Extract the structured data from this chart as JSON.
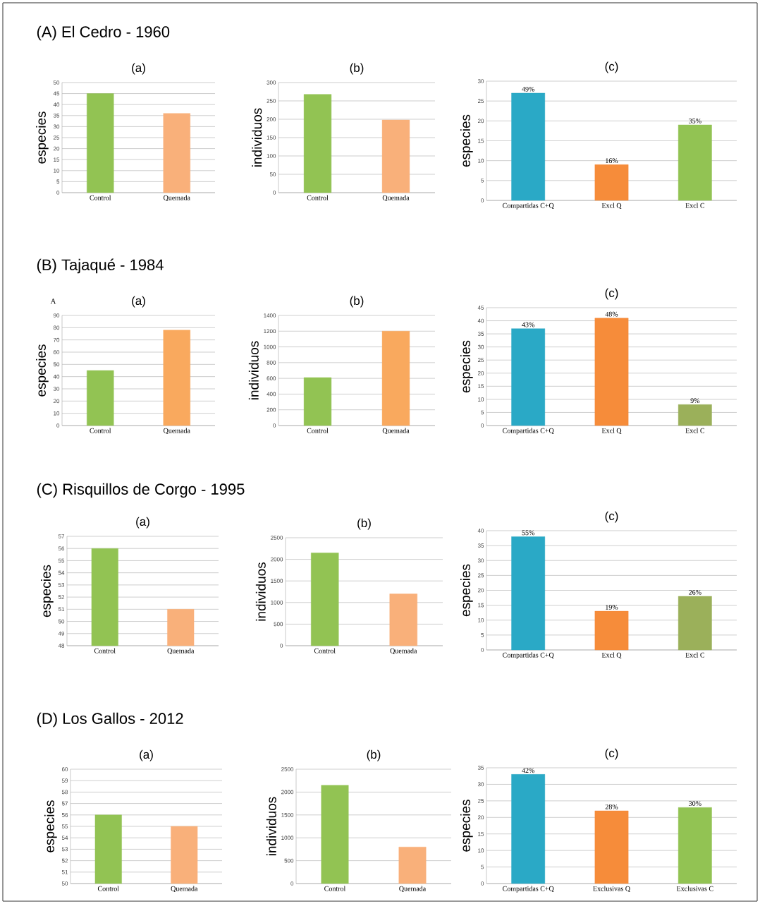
{
  "chart_data": [
    {
      "type": "bar",
      "title": "(a)",
      "annotations": [
        "(A) El Cedro - 1960"
      ],
      "ylabel": "especies",
      "categories": [
        "Control",
        "Quemada"
      ],
      "values": [
        45,
        36
      ],
      "colors": [
        "#92c353",
        "#f9b07a"
      ],
      "ylim": [
        0,
        50
      ],
      "yticks": [
        0,
        5,
        10,
        15,
        20,
        25,
        30,
        35,
        40,
        45,
        50
      ],
      "grid": "y"
    },
    {
      "type": "bar",
      "title": "(b)",
      "ylabel": "individuos",
      "categories": [
        "Control",
        "Quemada"
      ],
      "values": [
        268,
        198
      ],
      "colors": [
        "#92c353",
        "#f9b07a"
      ],
      "ylim": [
        0,
        300
      ],
      "yticks": [
        0,
        50,
        100,
        150,
        200,
        250,
        300
      ],
      "grid": "y"
    },
    {
      "type": "bar",
      "title": "(c)",
      "ylabel": "especies",
      "categories": [
        "Compartidas C+Q",
        "Excl Q",
        "Excl C"
      ],
      "values": [
        27,
        9,
        19
      ],
      "colors": [
        "#2aa9c6",
        "#f68c3a",
        "#92c353"
      ],
      "annotations": [
        {
          "text": "49%",
          "x": "Compartidas C+Q",
          "y": 27
        },
        {
          "text": "16%",
          "x": "Excl Q",
          "y": 9
        },
        {
          "text": "35%",
          "x": "Excl C",
          "y": 19
        }
      ],
      "ylim": [
        0,
        30
      ],
      "yticks": [
        0,
        5,
        10,
        15,
        20,
        25,
        30
      ],
      "grid": "y"
    },
    {
      "type": "bar",
      "title": "(a)",
      "annotations": [
        "(B) Tajaqué - 1984",
        "A"
      ],
      "ylabel": "especies",
      "categories": [
        "Control",
        "Quemada"
      ],
      "values": [
        45,
        78
      ],
      "colors": [
        "#92c353",
        "#f9a95e"
      ],
      "ylim": [
        0,
        90
      ],
      "yticks": [
        0,
        10,
        20,
        30,
        40,
        50,
        60,
        70,
        80,
        90
      ],
      "grid": "y"
    },
    {
      "type": "bar",
      "title": "(b)",
      "ylabel": "individuos",
      "categories": [
        "Control",
        "Quemada"
      ],
      "values": [
        610,
        1200
      ],
      "colors": [
        "#92c353",
        "#f9a95e"
      ],
      "ylim": [
        0,
        1400
      ],
      "yticks": [
        0,
        200,
        400,
        600,
        800,
        1000,
        1200,
        1400
      ],
      "grid": "y"
    },
    {
      "type": "bar",
      "title": "(c)",
      "ylabel": "especies",
      "categories": [
        "Compartidas C+Q",
        "Excl Q",
        "Excl C"
      ],
      "values": [
        37,
        41,
        8
      ],
      "colors": [
        "#2aa9c6",
        "#f68c3a",
        "#9bb05a"
      ],
      "annotations": [
        {
          "text": "43%",
          "x": "Compartidas C+Q",
          "y": 37
        },
        {
          "text": "48%",
          "x": "Excl Q",
          "y": 41
        },
        {
          "text": "9%",
          "x": "Excl C",
          "y": 8
        }
      ],
      "ylim": [
        0,
        45
      ],
      "yticks": [
        0,
        5,
        10,
        15,
        20,
        25,
        30,
        35,
        40,
        45
      ],
      "grid": "y"
    },
    {
      "type": "bar",
      "title": "(a)",
      "annotations": [
        "(C) Risquillos de Corgo - 1995"
      ],
      "ylabel": "especies",
      "categories": [
        "Control",
        "Quemada"
      ],
      "values": [
        56,
        51
      ],
      "colors": [
        "#92c353",
        "#f9b07a"
      ],
      "ylim": [
        48,
        57
      ],
      "yticks": [
        48,
        49,
        50,
        51,
        52,
        53,
        54,
        55,
        56,
        57
      ],
      "grid": "y"
    },
    {
      "type": "bar",
      "title": "(b)",
      "ylabel": "individuos",
      "categories": [
        "Control",
        "Quemada"
      ],
      "values": [
        2150,
        1200
      ],
      "colors": [
        "#92c353",
        "#f9b07a"
      ],
      "ylim": [
        0,
        2500
      ],
      "yticks": [
        0,
        500,
        1000,
        1500,
        2000,
        2500
      ],
      "grid": "y"
    },
    {
      "type": "bar",
      "title": "(c)",
      "ylabel": "especies",
      "categories": [
        "Compartidas C+Q",
        "Excl Q",
        "Excl C"
      ],
      "values": [
        38,
        13,
        18
      ],
      "colors": [
        "#2aa9c6",
        "#f68c3a",
        "#9bb05a"
      ],
      "annotations": [
        {
          "text": "55%",
          "x": "Compartidas C+Q",
          "y": 38
        },
        {
          "text": "19%",
          "x": "Excl Q",
          "y": 13
        },
        {
          "text": "26%",
          "x": "Excl C",
          "y": 18
        }
      ],
      "ylim": [
        0,
        40
      ],
      "yticks": [
        0,
        5,
        10,
        15,
        20,
        25,
        30,
        35,
        40
      ],
      "grid": "y"
    },
    {
      "type": "bar",
      "title": "(a)",
      "annotations": [
        "(D) Los Gallos - 2012"
      ],
      "ylabel": "especies",
      "categories": [
        "Control",
        "Quemada"
      ],
      "values": [
        56,
        55
      ],
      "colors": [
        "#92c353",
        "#f9b07a"
      ],
      "ylim": [
        50,
        60
      ],
      "yticks": [
        50,
        51,
        52,
        53,
        54,
        55,
        56,
        57,
        58,
        59,
        60
      ],
      "grid": "y"
    },
    {
      "type": "bar",
      "title": "(b)",
      "ylabel": "individuos",
      "categories": [
        "Control",
        "Quemada"
      ],
      "values": [
        2150,
        800
      ],
      "colors": [
        "#92c353",
        "#f9b07a"
      ],
      "ylim": [
        0,
        2500
      ],
      "yticks": [
        0,
        500,
        1000,
        1500,
        2000,
        2500
      ],
      "grid": "y"
    },
    {
      "type": "bar",
      "title": "(c)",
      "ylabel": "especies",
      "categories": [
        "Compartidas C+Q",
        "Exclusivas Q",
        "Exclusivas C"
      ],
      "values": [
        33,
        22,
        23
      ],
      "colors": [
        "#2aa9c6",
        "#f68c3a",
        "#92c353"
      ],
      "annotations": [
        {
          "text": "42%",
          "x": "Compartidas C+Q",
          "y": 33
        },
        {
          "text": "28%",
          "x": "Exclusivas Q",
          "y": 22
        },
        {
          "text": "30%",
          "x": "Exclusivas C",
          "y": 23
        }
      ],
      "ylim": [
        0,
        35
      ],
      "yticks": [
        0,
        5,
        10,
        15,
        20,
        25,
        30,
        35
      ],
      "grid": "y"
    }
  ]
}
